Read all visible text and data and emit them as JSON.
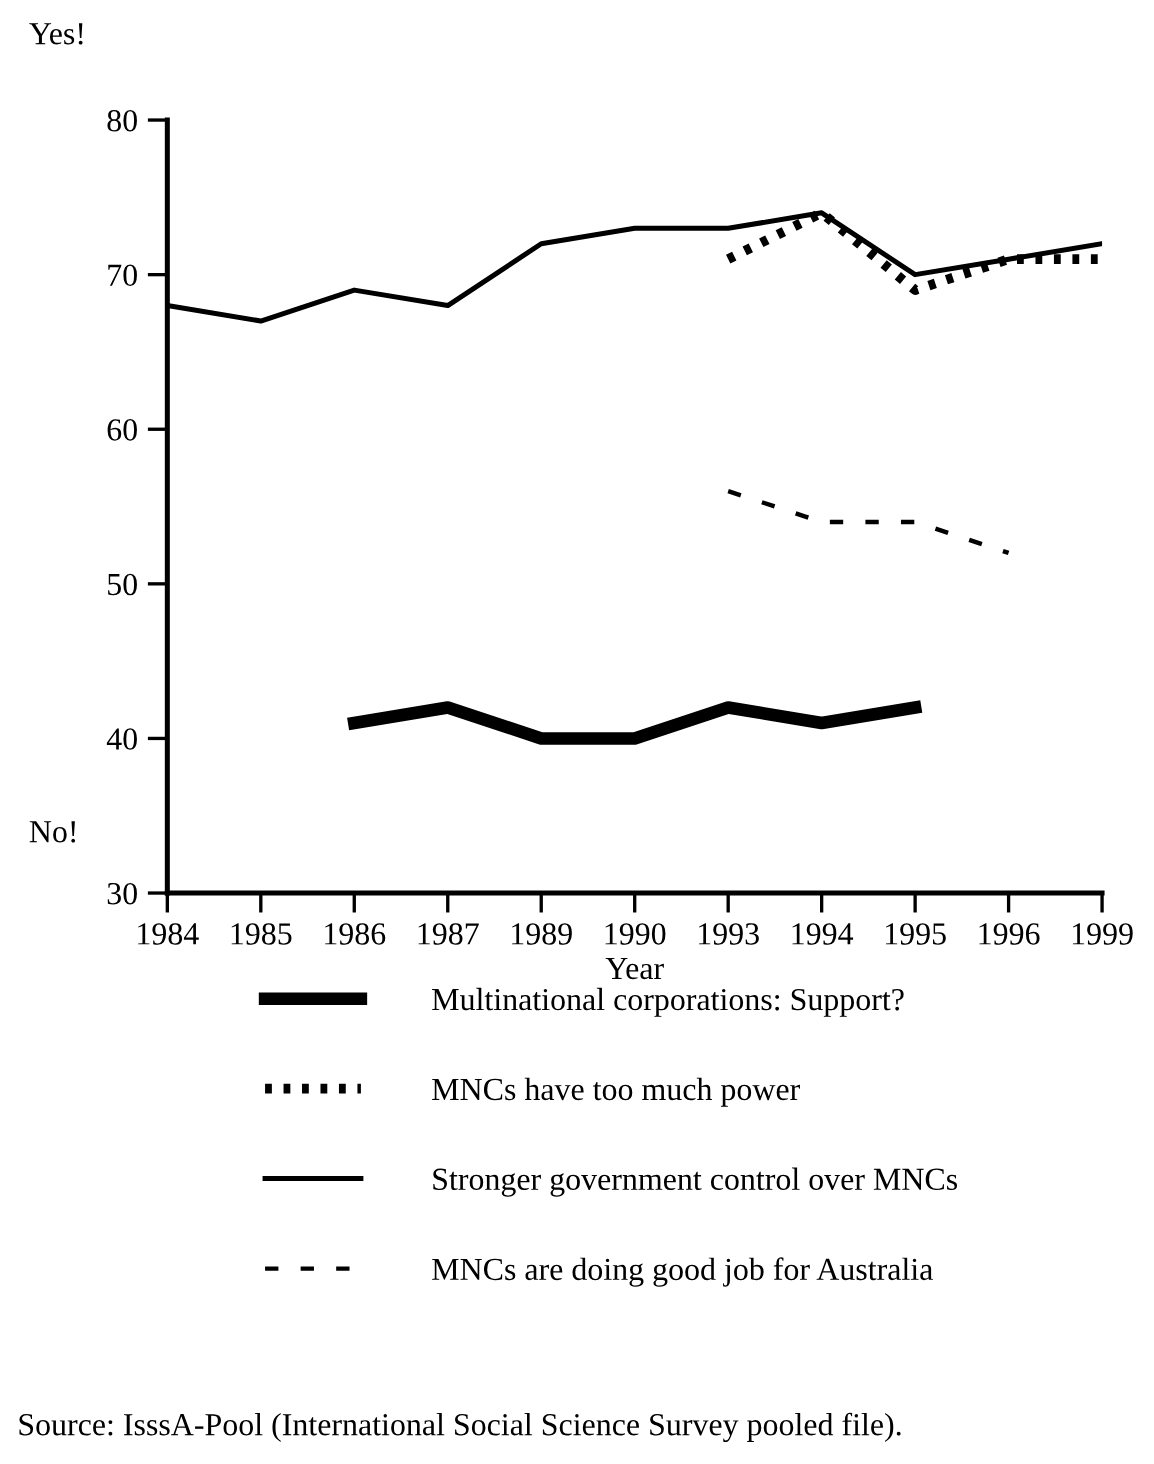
{
  "chart_data": {
    "type": "line",
    "xlabel": "Year",
    "categories": [
      "1984",
      "1985",
      "1986",
      "1987",
      "1989",
      "1990",
      "1993",
      "1994",
      "1995",
      "1996",
      "1999"
    ],
    "series": [
      {
        "name": "Multinational corporations: Support?",
        "color": "#000000",
        "line_style": "solid",
        "values": [
          null,
          null,
          41,
          42,
          40,
          40,
          42,
          41,
          42,
          null,
          null
        ]
      },
      {
        "name": "MNCs have too much power",
        "color": "#000000",
        "line_style": "dotted",
        "values": [
          null,
          null,
          null,
          null,
          null,
          null,
          71,
          74,
          69,
          71,
          71
        ]
      },
      {
        "name": "Stronger government control over MNCs",
        "color": "#000000",
        "line_style": "solid",
        "values": [
          68,
          67,
          69,
          68,
          72,
          73,
          73,
          74,
          70,
          71,
          72
        ]
      },
      {
        "name": "MNCs are doing good job for Australia",
        "color": "#000000",
        "line_style": "dashed",
        "values": [
          null,
          null,
          null,
          null,
          null,
          null,
          56,
          54,
          54,
          52,
          null
        ]
      }
    ],
    "ylim": [
      30,
      80
    ],
    "yticks": [
      30,
      40,
      50,
      60,
      70,
      80
    ],
    "grid": false,
    "legend": "bottom",
    "marker": "none",
    "annotations": [
      "Yes!",
      "No!",
      "Source: IsssA-Pool (International Social Science Survey pooled file)."
    ]
  }
}
